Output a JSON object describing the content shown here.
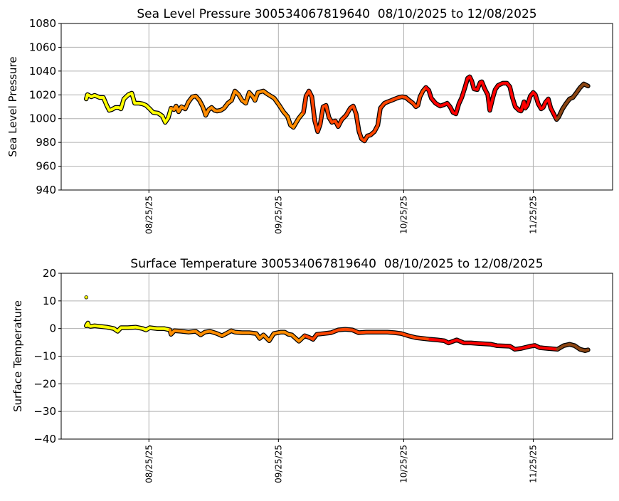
{
  "chart_data": [
    {
      "type": "line",
      "title": "Sea Level Pressure 300534067819640  08/10/2025 to 12/08/2025",
      "xlabel": "",
      "ylabel": "Sea Level Pressure",
      "x_unit": "days since 08/10/2025",
      "xlim": [
        -6,
        126
      ],
      "ylim": [
        940,
        1080
      ],
      "yticks": [
        940,
        960,
        980,
        1000,
        1020,
        1040,
        1060,
        1080
      ],
      "xticks": [
        {
          "day": 15,
          "label": "08/25/25"
        },
        {
          "day": 46,
          "label": "09/25/25"
        },
        {
          "day": 76,
          "label": "10/25/25"
        },
        {
          "day": 107,
          "label": "11/25/25"
        }
      ],
      "grid": true,
      "color_by_day": [
        {
          "from": 0,
          "color": "#ffff00"
        },
        {
          "from": 20,
          "color": "#ff8c00"
        },
        {
          "from": 52,
          "color": "#ff4500"
        },
        {
          "from": 81,
          "color": "#ff0000"
        },
        {
          "from": 112.5,
          "color": "#8b4513"
        }
      ],
      "points": [
        [
          0,
          1016.6
        ],
        [
          0.3,
          1020.2
        ],
        [
          1.2,
          1018.4
        ],
        [
          2.0,
          1019.6
        ],
        [
          3.2,
          1017.8
        ],
        [
          4.1,
          1017.8
        ],
        [
          4.9,
          1011.2
        ],
        [
          5.5,
          1007.0
        ],
        [
          6.1,
          1007.6
        ],
        [
          7.0,
          1009.4
        ],
        [
          7.8,
          1009.4
        ],
        [
          8.3,
          1008.2
        ],
        [
          9.0,
          1016.6
        ],
        [
          10.1,
          1020.2
        ],
        [
          10.9,
          1021.4
        ],
        [
          11.6,
          1013.0
        ],
        [
          12.6,
          1013.0
        ],
        [
          13.5,
          1012.4
        ],
        [
          14.3,
          1011.2
        ],
        [
          15.2,
          1008.2
        ],
        [
          16.0,
          1005.2
        ],
        [
          17.2,
          1004.6
        ],
        [
          18.2,
          1002.2
        ],
        [
          18.9,
          996.9
        ],
        [
          19.6,
          1000.5
        ],
        [
          20.3,
          1008.8
        ],
        [
          21.0,
          1007.6
        ],
        [
          21.5,
          1010.6
        ],
        [
          22.1,
          1005.8
        ],
        [
          22.8,
          1010.0
        ],
        [
          23.7,
          1008.2
        ],
        [
          24.5,
          1014.2
        ],
        [
          25.4,
          1018.4
        ],
        [
          26.2,
          1019.0
        ],
        [
          27.1,
          1015.4
        ],
        [
          27.9,
          1010.0
        ],
        [
          28.6,
          1002.8
        ],
        [
          29.3,
          1007.6
        ],
        [
          30.0,
          1009.4
        ],
        [
          30.7,
          1007.0
        ],
        [
          31.3,
          1006.4
        ],
        [
          32.2,
          1007.0
        ],
        [
          33.0,
          1008.8
        ],
        [
          33.9,
          1013.0
        ],
        [
          34.8,
          1015.4
        ],
        [
          35.6,
          1023.2
        ],
        [
          36.5,
          1020.2
        ],
        [
          37.3,
          1015.4
        ],
        [
          38.2,
          1013.0
        ],
        [
          39.0,
          1022.0
        ],
        [
          39.9,
          1018.4
        ],
        [
          40.4,
          1015.4
        ],
        [
          41.1,
          1022.0
        ],
        [
          42.4,
          1023.2
        ],
        [
          43.3,
          1020.8
        ],
        [
          45.0,
          1017.2
        ],
        [
          46.2,
          1011.2
        ],
        [
          47.2,
          1005.8
        ],
        [
          48.2,
          1001.7
        ],
        [
          48.9,
          994.5
        ],
        [
          49.6,
          992.7
        ],
        [
          50.3,
          996.9
        ],
        [
          50.9,
          1000.5
        ],
        [
          52.0,
          1005.2
        ],
        [
          52.6,
          1019.0
        ],
        [
          53.3,
          1023.2
        ],
        [
          54.0,
          1018.4
        ],
        [
          54.7,
          998.1
        ],
        [
          55.4,
          989.1
        ],
        [
          56.0,
          995.1
        ],
        [
          56.7,
          1010.0
        ],
        [
          57.4,
          1011.2
        ],
        [
          58.1,
          1001.1
        ],
        [
          58.8,
          996.9
        ],
        [
          59.6,
          998.1
        ],
        [
          60.3,
          993.3
        ],
        [
          61.2,
          999.3
        ],
        [
          62.2,
          1002.8
        ],
        [
          63.2,
          1008.8
        ],
        [
          63.9,
          1010.6
        ],
        [
          64.6,
          1004.0
        ],
        [
          65.3,
          989.1
        ],
        [
          65.9,
          983.1
        ],
        [
          66.6,
          981.3
        ],
        [
          67.3,
          985.5
        ],
        [
          68.0,
          986.1
        ],
        [
          69.0,
          989.1
        ],
        [
          69.8,
          994.5
        ],
        [
          70.4,
          1008.8
        ],
        [
          71.4,
          1013.0
        ],
        [
          72.2,
          1014.2
        ],
        [
          73.1,
          1015.4
        ],
        [
          73.9,
          1016.6
        ],
        [
          74.8,
          1017.8
        ],
        [
          75.6,
          1018.4
        ],
        [
          76.5,
          1017.8
        ],
        [
          77.3,
          1015.4
        ],
        [
          78.2,
          1013.0
        ],
        [
          78.9,
          1010.0
        ],
        [
          79.4,
          1011.2
        ],
        [
          79.9,
          1018.4
        ],
        [
          80.6,
          1023.2
        ],
        [
          81.3,
          1026.2
        ],
        [
          82.0,
          1023.8
        ],
        [
          82.6,
          1017.2
        ],
        [
          83.6,
          1013.0
        ],
        [
          84.7,
          1010.6
        ],
        [
          85.7,
          1011.8
        ],
        [
          86.4,
          1013.0
        ],
        [
          87.1,
          1010.0
        ],
        [
          87.8,
          1005.2
        ],
        [
          88.5,
          1004.0
        ],
        [
          89.2,
          1012.4
        ],
        [
          89.9,
          1017.8
        ],
        [
          90.6,
          1025.6
        ],
        [
          91.3,
          1034.0
        ],
        [
          91.8,
          1035.2
        ],
        [
          92.3,
          1031.6
        ],
        [
          92.8,
          1025.0
        ],
        [
          93.6,
          1024.4
        ],
        [
          94.3,
          1030.4
        ],
        [
          94.7,
          1031.0
        ],
        [
          95.4,
          1025.0
        ],
        [
          96.1,
          1020.2
        ],
        [
          96.6,
          1007.0
        ],
        [
          97.3,
          1017.2
        ],
        [
          97.9,
          1024.4
        ],
        [
          98.6,
          1028.0
        ],
        [
          99.7,
          1029.8
        ],
        [
          100.7,
          1029.8
        ],
        [
          101.4,
          1026.8
        ],
        [
          102.0,
          1017.8
        ],
        [
          102.7,
          1010.0
        ],
        [
          103.6,
          1007.0
        ],
        [
          104.1,
          1006.4
        ],
        [
          104.8,
          1014.2
        ],
        [
          105.1,
          1008.8
        ],
        [
          105.6,
          1011.2
        ],
        [
          106.3,
          1019.0
        ],
        [
          107.0,
          1022.0
        ],
        [
          107.5,
          1020.2
        ],
        [
          108.2,
          1012.4
        ],
        [
          108.9,
          1008.2
        ],
        [
          109.4,
          1009.4
        ],
        [
          109.9,
          1013.6
        ],
        [
          110.6,
          1016.6
        ],
        [
          111.2,
          1008.8
        ],
        [
          111.9,
          1004.0
        ],
        [
          112.6,
          999.3
        ],
        [
          113.1,
          1001.5
        ],
        [
          114.0,
          1008.0
        ],
        [
          114.8,
          1012.4
        ],
        [
          115.7,
          1016.6
        ],
        [
          116.5,
          1017.8
        ],
        [
          117.4,
          1022.0
        ],
        [
          118.2,
          1026.0
        ],
        [
          119.1,
          1029.2
        ],
        [
          120.1,
          1027.4
        ]
      ],
      "isolated_points": []
    },
    {
      "type": "line",
      "title": "Surface Temperature 300534067819640  08/10/2025 to 12/08/2025",
      "xlabel": "",
      "ylabel": "Surface Temperature",
      "x_unit": "days since 08/10/2025",
      "xlim": [
        -6,
        126
      ],
      "ylim": [
        -40,
        20
      ],
      "yticks": [
        -40,
        -30,
        -20,
        -10,
        0,
        10,
        20
      ],
      "xticks": [
        {
          "day": 15,
          "label": "08/25/25"
        },
        {
          "day": 46,
          "label": "09/25/25"
        },
        {
          "day": 76,
          "label": "10/25/25"
        },
        {
          "day": 107,
          "label": "11/25/25"
        }
      ],
      "grid": true,
      "color_by_day": [
        {
          "from": 0,
          "color": "#ffff00"
        },
        {
          "from": 20,
          "color": "#ff8c00"
        },
        {
          "from": 52,
          "color": "#ff4500"
        },
        {
          "from": 81,
          "color": "#ff0000"
        },
        {
          "from": 112.5,
          "color": "#8b4513"
        }
      ],
      "points": [
        [
          0,
          1.0
        ],
        [
          0.4,
          2.0
        ],
        [
          0.6,
          1.0
        ],
        [
          1,
          0.8
        ],
        [
          2,
          1.0
        ],
        [
          3.2,
          0.8
        ],
        [
          4.9,
          0.5
        ],
        [
          6.6,
          0.0
        ],
        [
          7.5,
          -1.0
        ],
        [
          8.3,
          0.3
        ],
        [
          10,
          0.3
        ],
        [
          11.8,
          0.5
        ],
        [
          13.5,
          0
        ],
        [
          14.3,
          -0.5
        ],
        [
          15.2,
          0.3
        ],
        [
          16.9,
          0
        ],
        [
          18.6,
          0
        ],
        [
          20,
          -0.5
        ],
        [
          20.3,
          -2.1
        ],
        [
          21.1,
          -0.8
        ],
        [
          22.8,
          -1.0
        ],
        [
          24.5,
          -1.3
        ],
        [
          26.2,
          -1.0
        ],
        [
          27.4,
          -2.3
        ],
        [
          28.4,
          -1.3
        ],
        [
          29.6,
          -1.0
        ],
        [
          31.3,
          -1.8
        ],
        [
          32.5,
          -2.6
        ],
        [
          33.5,
          -1.8
        ],
        [
          34.7,
          -0.8
        ],
        [
          35.6,
          -1.3
        ],
        [
          37.3,
          -1.5
        ],
        [
          39,
          -1.5
        ],
        [
          40.7,
          -1.8
        ],
        [
          41.5,
          -3.6
        ],
        [
          42.4,
          -2.3
        ],
        [
          43.8,
          -4.4
        ],
        [
          44.9,
          -1.8
        ],
        [
          46.6,
          -1.3
        ],
        [
          47.5,
          -1.3
        ],
        [
          48.4,
          -2.1
        ],
        [
          49.2,
          -2.3
        ],
        [
          50.9,
          -4.6
        ],
        [
          52.3,
          -2.6
        ],
        [
          53.5,
          -3.3
        ],
        [
          54.3,
          -3.9
        ],
        [
          55.2,
          -2.1
        ],
        [
          56.9,
          -1.8
        ],
        [
          58.6,
          -1.5
        ],
        [
          60.3,
          -0.5
        ],
        [
          62,
          -0.3
        ],
        [
          63.7,
          -0.5
        ],
        [
          65.2,
          -1.5
        ],
        [
          67,
          -1.3
        ],
        [
          68.7,
          -1.3
        ],
        [
          70.4,
          -1.3
        ],
        [
          72.1,
          -1.3
        ],
        [
          73.8,
          -1.5
        ],
        [
          75.4,
          -1.8
        ],
        [
          77.1,
          -2.6
        ],
        [
          78.9,
          -3.3
        ],
        [
          80.6,
          -3.6
        ],
        [
          82.3,
          -3.9
        ],
        [
          84,
          -4.1
        ],
        [
          85.7,
          -4.4
        ],
        [
          86.7,
          -5.2
        ],
        [
          88.7,
          -4.1
        ],
        [
          90.4,
          -5.2
        ],
        [
          92.1,
          -5.2
        ],
        [
          93.8,
          -5.4
        ],
        [
          96.9,
          -5.7
        ],
        [
          98.3,
          -6.2
        ],
        [
          101.4,
          -6.4
        ],
        [
          102.6,
          -7.5
        ],
        [
          104.1,
          -7.2
        ],
        [
          106.3,
          -6.4
        ],
        [
          107.4,
          -6.1
        ],
        [
          108.5,
          -6.9
        ],
        [
          110.5,
          -7.2
        ],
        [
          112.8,
          -7.5
        ],
        [
          114.3,
          -6.2
        ],
        [
          115.7,
          -5.7
        ],
        [
          116.9,
          -6.2
        ],
        [
          118.2,
          -7.5
        ],
        [
          119.4,
          -8.0
        ],
        [
          120.1,
          -7.7
        ]
      ],
      "isolated_points": [
        [
          0,
          11.3
        ]
      ]
    }
  ]
}
